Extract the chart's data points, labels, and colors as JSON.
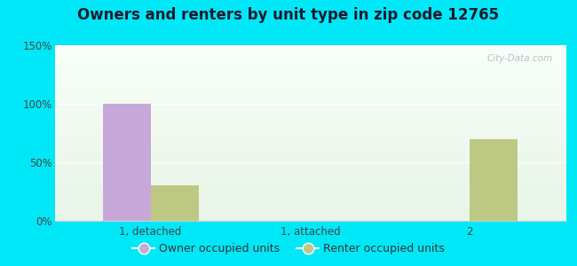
{
  "title": "Owners and renters by unit type in zip code 12765",
  "categories": [
    "1, detached",
    "1, attached",
    "2"
  ],
  "owner_values": [
    100,
    0,
    0
  ],
  "renter_values": [
    30,
    0,
    70
  ],
  "owner_color": "#c8a8d8",
  "renter_color": "#bdc882",
  "ylim": [
    0,
    150
  ],
  "yticks": [
    0,
    50,
    100,
    150
  ],
  "ytick_labels": [
    "0%",
    "50%",
    "100%",
    "150%"
  ],
  "bar_width": 0.3,
  "bg_top": "#e8f5e8",
  "bg_bottom": "#f8fff8",
  "outer_color": "#00e8f8",
  "watermark": "City-Data.com",
  "legend_owner": "Owner occupied units",
  "legend_renter": "Renter occupied units",
  "title_fontsize": 12,
  "tick_fontsize": 8.5,
  "legend_fontsize": 9
}
